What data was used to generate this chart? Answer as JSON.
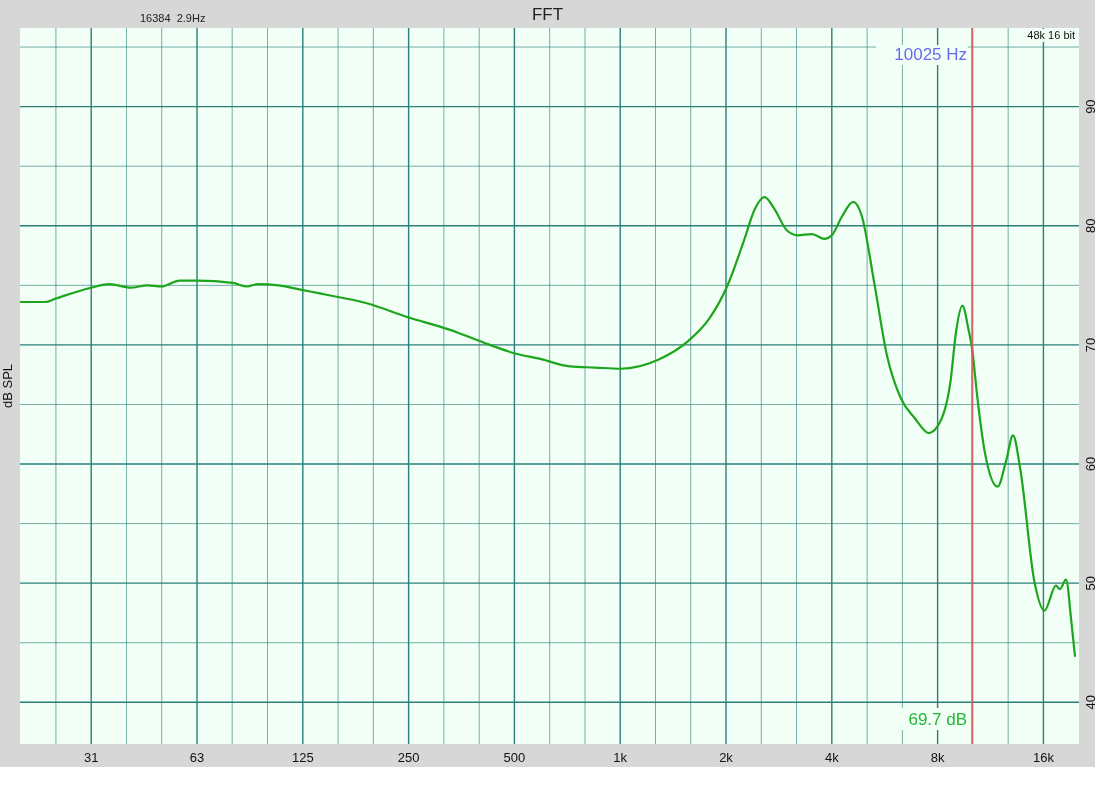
{
  "chart_data": {
    "type": "line",
    "title": "FFT",
    "ylabel": "dB SPL",
    "log": "x",
    "grid": true,
    "xlim": [
      19.6,
      20200
    ],
    "ylim": [
      36.5,
      96.6
    ],
    "xticks": [
      {
        "value": 24.8,
        "label": null
      },
      {
        "value": 31.25,
        "label": "31"
      },
      {
        "value": 39.4,
        "label": null
      },
      {
        "value": 49.6,
        "label": null
      },
      {
        "value": 62.5,
        "label": "63"
      },
      {
        "value": 78.7,
        "label": null
      },
      {
        "value": 99.2,
        "label": null
      },
      125,
      {
        "value": 157.5,
        "label": null
      },
      {
        "value": 198.4,
        "label": null
      },
      250,
      {
        "value": 315,
        "label": null
      },
      {
        "value": 397,
        "label": null
      },
      500,
      {
        "value": 630,
        "label": null
      },
      {
        "value": 794,
        "label": null
      },
      {
        "value": 1000,
        "label": "1k"
      },
      {
        "value": 1260,
        "label": null
      },
      {
        "value": 1587,
        "label": null
      },
      {
        "value": 2000,
        "label": "2k"
      },
      {
        "value": 2520,
        "label": null
      },
      {
        "value": 3175,
        "label": null
      },
      {
        "value": 4000,
        "label": "4k"
      },
      {
        "value": 5040,
        "label": null
      },
      {
        "value": 6350,
        "label": null
      },
      {
        "value": 8000,
        "label": "8k"
      },
      {
        "value": 10079,
        "label": null
      },
      {
        "value": 12699,
        "label": null
      },
      {
        "value": 16000,
        "label": "16k"
      }
    ],
    "yticks": [
      40,
      {
        "value": 45,
        "label": null
      },
      50,
      {
        "value": 55,
        "label": null
      },
      60,
      {
        "value": 65,
        "label": null
      },
      70,
      {
        "value": 75,
        "label": null
      },
      80,
      {
        "value": 85,
        "label": null
      },
      90,
      {
        "value": 95,
        "label": null
      }
    ],
    "x": [
      19.7,
      23.1,
      24.8,
      31.25,
      35.2,
      40.4,
      45.2,
      49.5,
      55.8,
      62.5,
      79,
      86.8,
      92.9,
      106.6,
      125,
      141,
      158.7,
      190,
      250,
      325,
      347,
      408,
      500,
      596,
      720,
      848,
      1000,
      1292,
      1557,
      1792,
      2014,
      2252,
      2416,
      2575,
      2748,
      2982,
      3199,
      3513,
      3811,
      4000,
      4279,
      4603,
      4870,
      5283,
      5732,
      6291,
      6909,
      7553,
      8122,
      8710,
      9017,
      9409,
      9794,
      10025,
      10378,
      10883,
      11858,
      12515,
      13112,
      13744,
      15088,
      16116,
      17366,
      17830,
      18550,
      19210,
      19670
    ],
    "series": [
      {
        "color": "#1ea51e",
        "values": [
          73.6,
          73.6,
          73.9,
          74.8,
          75.1,
          74.8,
          75.0,
          74.9,
          75.4,
          75.4,
          75.2,
          74.9,
          75.1,
          75.0,
          74.6,
          74.3,
          74.0,
          73.5,
          72.3,
          71.3,
          71.0,
          70.2,
          69.3,
          68.8,
          68.2,
          68.1,
          68.0,
          68.8,
          70.3,
          72.2,
          74.9,
          78.8,
          81.4,
          82.4,
          81.4,
          79.6,
          79.2,
          79.3,
          78.9,
          79.2,
          80.8,
          82.0,
          80.8,
          75.2,
          69.2,
          65.5,
          63.8,
          62.6,
          63.5,
          67.0,
          71.0,
          73.3,
          71.3,
          69.7,
          65.6,
          61.1,
          58.1,
          60.2,
          62.4,
          59.6,
          50.1,
          47.7,
          49.8,
          49.5,
          50.3,
          46.8,
          43.9
        ]
      }
    ],
    "ref_lines": [
      {
        "axis": "x",
        "value": 10025,
        "label": "10025 Hz",
        "color": "#e05555"
      }
    ],
    "annotations": [
      "16384  2.9Hz",
      "48k 16 bit",
      "69.7 dB"
    ]
  }
}
